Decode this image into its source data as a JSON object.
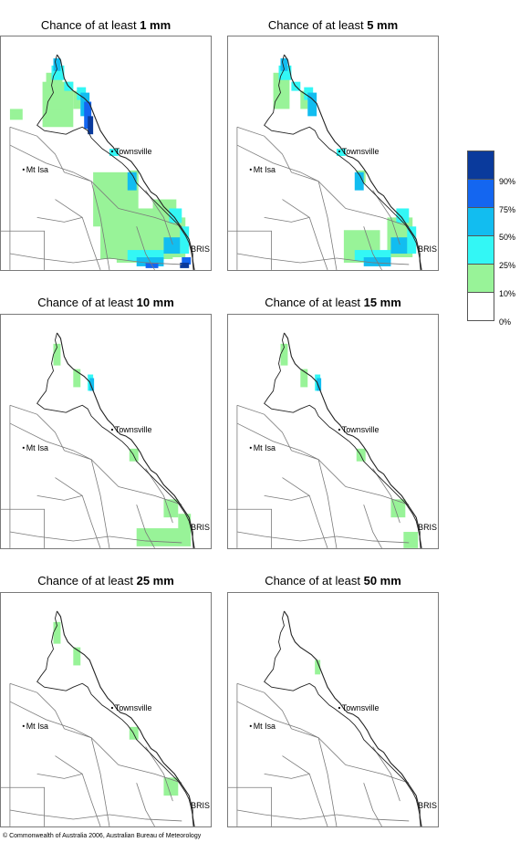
{
  "panels": [
    {
      "prefix": "Chance of at least ",
      "threshold": "1 mm",
      "level": 6
    },
    {
      "prefix": "Chance of at least ",
      "threshold": "5 mm",
      "level": 5
    },
    {
      "prefix": "Chance of at least ",
      "threshold": "10 mm",
      "level": 4
    },
    {
      "prefix": "Chance of at least ",
      "threshold": "15 mm",
      "level": 3
    },
    {
      "prefix": "Chance of at least ",
      "threshold": "25 mm",
      "level": 2
    },
    {
      "prefix": "Chance of at least ",
      "threshold": "50 mm",
      "level": 1
    }
  ],
  "places": {
    "townsville": "Townsville",
    "mt_isa": "Mt Isa",
    "bris": "BRIS"
  },
  "legend": {
    "labels": [
      "90%",
      "75%",
      "50%",
      "25%",
      "10%",
      "0%"
    ],
    "colors": [
      "#0a3a9c",
      "#1466f0",
      "#12bdf0",
      "#33f7f5",
      "#98f398",
      "#ffffff"
    ]
  },
  "colors": {
    "c10": "#98f398",
    "c25": "#33f7f5",
    "c50": "#12bdf0",
    "c75": "#1466f0",
    "c90": "#0a3a9c",
    "border": "#7a7a7a",
    "coast": "#222222"
  },
  "copyright": "© Commonwealth of Australia 2006, Australian Bureau of Meteorology"
}
